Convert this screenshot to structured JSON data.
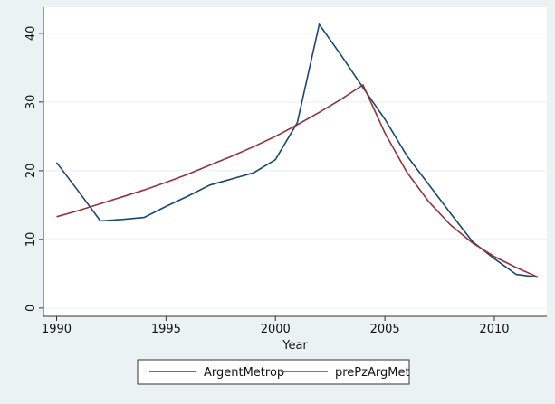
{
  "chart_data": {
    "type": "line",
    "x_label": "Year",
    "x": [
      1990,
      1991,
      1992,
      1993,
      1994,
      1995,
      1996,
      1997,
      1998,
      1999,
      2000,
      2001,
      2002,
      2003,
      2004,
      2005,
      2006,
      2007,
      2008,
      2009,
      2010,
      2011,
      2012
    ],
    "series": [
      {
        "name": "ArgentMetrop",
        "color": "#1a476f",
        "values": [
          21.2,
          17.0,
          12.7,
          12.9,
          13.2,
          14.8,
          16.3,
          17.9,
          18.8,
          19.7,
          21.6,
          27.0,
          41.3,
          36.8,
          32.1,
          27.5,
          22.2,
          18.0,
          13.8,
          9.7,
          7.2,
          4.9,
          4.5
        ]
      },
      {
        "name": "prePzArgMet",
        "color": "#90353b",
        "values": [
          13.3,
          14.2,
          15.2,
          16.2,
          17.2,
          18.3,
          19.5,
          20.8,
          22.1,
          23.5,
          25.0,
          26.7,
          28.5,
          30.4,
          32.5,
          25.5,
          19.8,
          15.5,
          12.1,
          9.5,
          7.5,
          5.9,
          4.5
        ]
      }
    ],
    "xlim": [
      1989.4,
      2012.4
    ],
    "xticks": [
      1990,
      1995,
      2000,
      2005,
      2010
    ],
    "ylim": [
      -1.2,
      43.8
    ],
    "yticks": [
      0,
      10,
      20,
      30,
      40
    ],
    "grid": true,
    "legend": "bottom"
  }
}
